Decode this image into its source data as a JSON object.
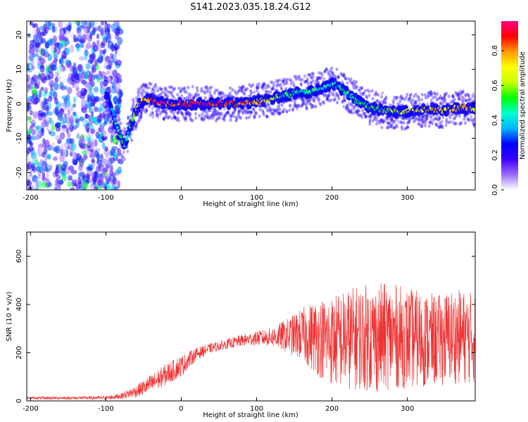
{
  "chart_data": [
    {
      "type": "heatmap",
      "title": "S141.2023.035.18.24.G12",
      "xlabel": "Height of straight line (km)",
      "ylabel": "Frequency (Hz)",
      "xlim": [
        -205,
        390
      ],
      "ylim": [
        -25,
        24
      ],
      "xticks": [
        -200,
        -100,
        0,
        100,
        200,
        300
      ],
      "yticks": [
        -20,
        -10,
        0,
        10,
        20
      ],
      "colorbar": {
        "label": "Normalized spectral amplitude",
        "range": [
          0,
          0.97
        ],
        "ticks": [
          "0.0",
          "0.2",
          "0.4",
          "0.6",
          "0.8"
        ],
        "colors": [
          "#ffffff",
          "#9c6bff",
          "#3b00ff",
          "#0000ff",
          "#00b4ff",
          "#00ffd0",
          "#00ff00",
          "#c8ff00",
          "#ffff00",
          "#ff9a00",
          "#ff0000",
          "#ff0080"
        ]
      },
      "ridge": {
        "x": [
          -100,
          -90,
          -85,
          -80,
          -75,
          -70,
          -65,
          -60,
          -55,
          -50,
          -40,
          -30,
          -20,
          0,
          40,
          75,
          90,
          110,
          130,
          150,
          170,
          185,
          200,
          215,
          230,
          250,
          270,
          290,
          310,
          330,
          350,
          370,
          390
        ],
        "y": [
          3,
          -3,
          -7,
          -10,
          -12,
          -8,
          -5,
          -2,
          0,
          1,
          1,
          0.5,
          0,
          0,
          0,
          0,
          0.5,
          1,
          2,
          3,
          3.5,
          4.5,
          6,
          4,
          1.5,
          -1,
          -2,
          -2.5,
          -2,
          -1.5,
          -2,
          -1,
          -1.5
        ],
        "amplitude": [
          0.3,
          0.4,
          0.5,
          0.55,
          0.5,
          0.5,
          0.6,
          0.7,
          0.8,
          0.85,
          0.9,
          0.92,
          0.95,
          0.95,
          0.95,
          0.92,
          0.85,
          0.8,
          0.6,
          0.5,
          0.5,
          0.5,
          0.45,
          0.5,
          0.5,
          0.55,
          0.6,
          0.65,
          0.75,
          0.75,
          0.8,
          0.8,
          0.75
        ]
      }
    },
    {
      "type": "line",
      "xlabel": "Height of straight line (km)",
      "ylabel": "SNR (10 * v/v)",
      "xlim": [
        -205,
        390
      ],
      "ylim": [
        0,
        700
      ],
      "xticks": [
        -200,
        -100,
        0,
        100,
        200,
        300
      ],
      "yticks": [
        0,
        200,
        400,
        600
      ],
      "color": "#ee3333",
      "envelope": {
        "x": [
          -205,
          -150,
          -100,
          -80,
          -60,
          -40,
          -20,
          0,
          20,
          40,
          60,
          80,
          100,
          120,
          140,
          160,
          180,
          200,
          220,
          240,
          260,
          280,
          300,
          320,
          340,
          360,
          390
        ],
        "mean": [
          12,
          12,
          13,
          20,
          40,
          70,
          110,
          145,
          195,
          220,
          235,
          250,
          260,
          265,
          270,
          275,
          265,
          250,
          255,
          265,
          260,
          270,
          260,
          255,
          250,
          270,
          260
        ],
        "spread": [
          5,
          6,
          8,
          12,
          25,
          40,
          45,
          45,
          25,
          20,
          20,
          25,
          30,
          40,
          70,
          110,
          160,
          190,
          210,
          220,
          230,
          220,
          210,
          200,
          190,
          200,
          190
        ]
      }
    }
  ]
}
